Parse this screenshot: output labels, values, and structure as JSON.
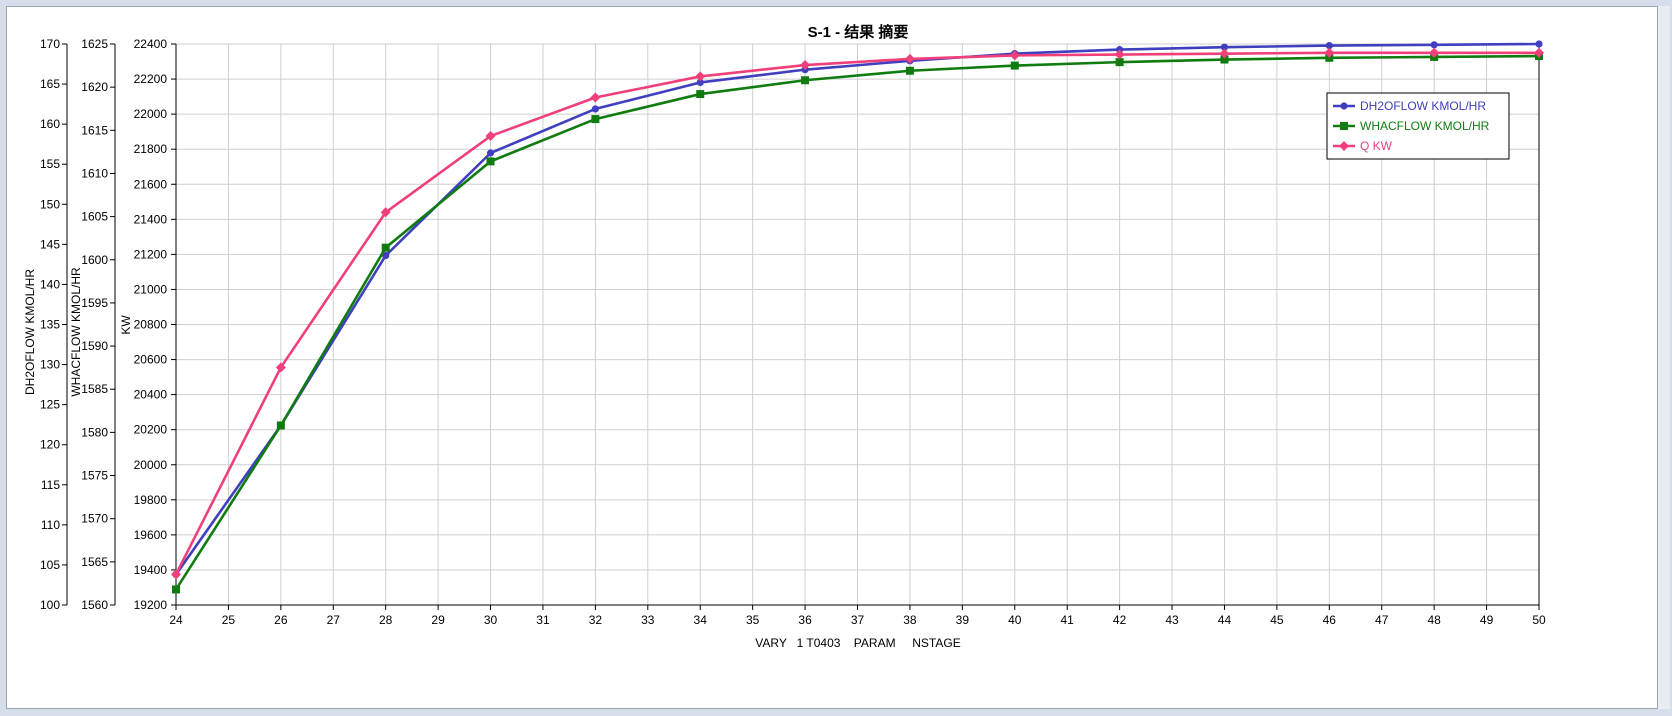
{
  "chart_data": {
    "type": "line",
    "title": "S-1 - 结果 摘要",
    "xlabel": "VARY   1 T0403    PARAM     NSTAGE",
    "xlim": [
      24,
      50
    ],
    "x_ticks": [
      "24",
      "25",
      "26",
      "27",
      "28",
      "29",
      "30",
      "31",
      "32",
      "33",
      "34",
      "35",
      "36",
      "37",
      "38",
      "39",
      "40",
      "41",
      "42",
      "43",
      "44",
      "45",
      "46",
      "47",
      "48",
      "49",
      "50"
    ],
    "axes": [
      {
        "id": "dh2o",
        "label": "DH2OFLOW      KMOL/HR",
        "ylim": [
          100,
          170
        ],
        "ticks": [
          "100",
          "105",
          "110",
          "115",
          "120",
          "125",
          "130",
          "135",
          "140",
          "145",
          "150",
          "155",
          "160",
          "165",
          "170"
        ]
      },
      {
        "id": "whac",
        "label": "WHACFLOW      KMOL/HR",
        "ylim": [
          1560,
          1625
        ],
        "ticks": [
          "1560",
          "1565",
          "1570",
          "1575",
          "1580",
          "1585",
          "1590",
          "1595",
          "1600",
          "1605",
          "1610",
          "1615",
          "1620",
          "1625"
        ]
      },
      {
        "id": "q",
        "label": "KW",
        "ylim": [
          19200,
          22400
        ],
        "ticks": [
          "19200",
          "19400",
          "19600",
          "19800",
          "20000",
          "20200",
          "20400",
          "20600",
          "20800",
          "21000",
          "21200",
          "21400",
          "21600",
          "21800",
          "22000",
          "22200",
          "22400"
        ]
      }
    ],
    "x": [
      24,
      26,
      28,
      30,
      32,
      34,
      36,
      38,
      40,
      42,
      44,
      46,
      48,
      50
    ],
    "series": [
      {
        "name": "DH2OFLOW      KMOL/HR",
        "axis": "dh2o",
        "color": "#3f3fbf",
        "marker": "circle",
        "values": [
          103.8,
          122.4,
          143.6,
          156.4,
          161.9,
          165.2,
          166.8,
          167.9,
          168.8,
          169.3,
          169.6,
          169.8,
          169.9,
          170.0
        ]
      },
      {
        "name": "WHACFLOW      KMOL/HR",
        "axis": "whac",
        "color": "#107c10",
        "marker": "square",
        "values": [
          1561.8,
          1580.8,
          1601.4,
          1611.4,
          1616.3,
          1619.2,
          1620.8,
          1621.9,
          1622.5,
          1622.9,
          1623.2,
          1623.4,
          1623.5,
          1623.6
        ]
      },
      {
        "name": "Q                 KW",
        "axis": "q",
        "color": "#f0407a",
        "marker": "diamond",
        "values": [
          19375,
          20555,
          21440,
          21875,
          22095,
          22215,
          22280,
          22315,
          22335,
          22340,
          22345,
          22350,
          22350,
          22350
        ]
      }
    ],
    "grid": true,
    "legend": "top-right"
  }
}
